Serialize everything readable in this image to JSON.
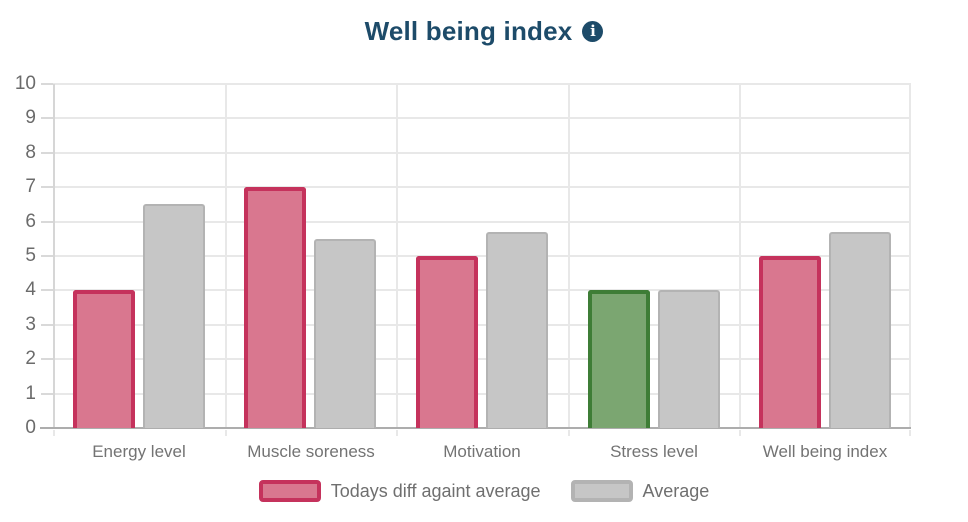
{
  "title": {
    "text": "Well being index",
    "info_glyph": "i"
  },
  "chart_data": {
    "type": "bar",
    "title": "Well being index",
    "categories": [
      "Energy level",
      "Muscle soreness",
      "Motivation",
      "Stress level",
      "Well being index"
    ],
    "series": [
      {
        "key": "today",
        "name": "Todays diff againt average",
        "values": [
          4,
          7,
          5,
          4,
          5
        ],
        "point_styles": [
          "pink",
          "pink",
          "pink",
          "green",
          "pink"
        ]
      },
      {
        "key": "average",
        "name": "Average",
        "values": [
          6.5,
          5.5,
          5.7,
          4,
          5.7
        ],
        "point_styles": [
          "gray",
          "gray",
          "gray",
          "gray",
          "gray"
        ]
      }
    ],
    "xlabel": "",
    "ylabel": "",
    "ylim": [
      0,
      10
    ],
    "ytick_step": 1,
    "yticks": [
      0,
      1,
      2,
      3,
      4,
      5,
      6,
      7,
      8,
      9,
      10
    ],
    "grid": true,
    "legend_position": "bottom"
  },
  "legend": {
    "items": [
      {
        "label": "Todays diff againt average",
        "style": "pink"
      },
      {
        "label": "Average",
        "style": "gray"
      }
    ]
  },
  "colors": {
    "pink": {
      "fill": "#d9778f",
      "border": "#c5325c"
    },
    "green": {
      "fill": "#7ba671",
      "border": "#3e7d36"
    },
    "gray": {
      "fill": "#c6c6c6",
      "border": "#b3b3b3"
    },
    "title_text": "#1d4b69",
    "info_icon_bg": "#1d4b69",
    "y_label_text": "#6b6b6b",
    "x_label_text": "#737373",
    "legend_text": "#6f6f6f",
    "grid_line": "#e8e8e8",
    "axis_line_left": "#d6d6d6",
    "axis_line_bottom": "#adadad",
    "tick_line": "#d9d9d9"
  }
}
